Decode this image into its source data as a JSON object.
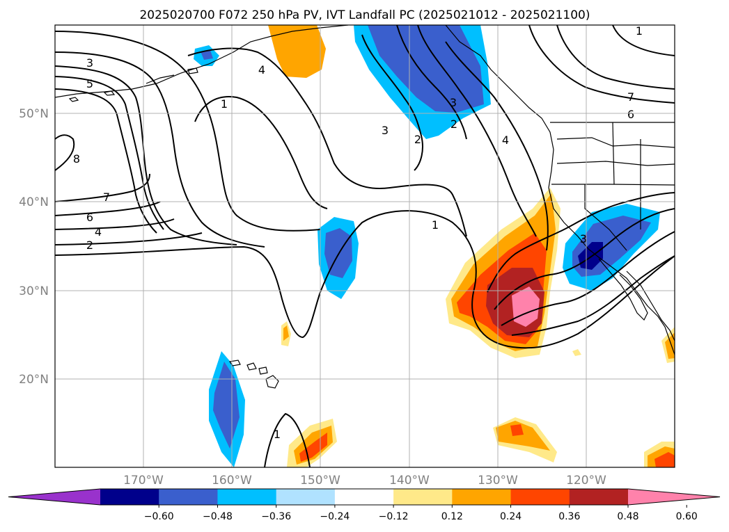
{
  "title": "2025020700 F072 250 hPa PV, IVT Landfall PC (2025021012 - 2025021100)",
  "map": {
    "lon_range": [
      -180,
      -110
    ],
    "lat_range": [
      10,
      60
    ],
    "lat_ticks": [
      "20°N",
      "30°N",
      "40°N",
      "50°N"
    ],
    "lon_ticks": [
      "170°W",
      "160°W",
      "150°W",
      "140°W",
      "130°W",
      "120°W"
    ],
    "pv_contour_labels": [
      "3",
      "5",
      "1",
      "8",
      "7",
      "6",
      "4",
      "2",
      "1",
      "3",
      "2",
      "4",
      "3",
      "2",
      "1",
      "7",
      "6",
      "4",
      "1",
      "3"
    ]
  },
  "colorbar": {
    "tick_labels": [
      "−0.60",
      "−0.48",
      "−0.36",
      "−0.24",
      "−0.12",
      "0.12",
      "0.24",
      "0.36",
      "0.48",
      "0.60"
    ],
    "colors": [
      "#9932cc",
      "#00008b",
      "#3a5fcd",
      "#00bfff",
      "#b0e2ff",
      "#ffffff",
      "#ffe989",
      "#ffa500",
      "#ff4500",
      "#b22222",
      "#ff82ab"
    ]
  }
}
